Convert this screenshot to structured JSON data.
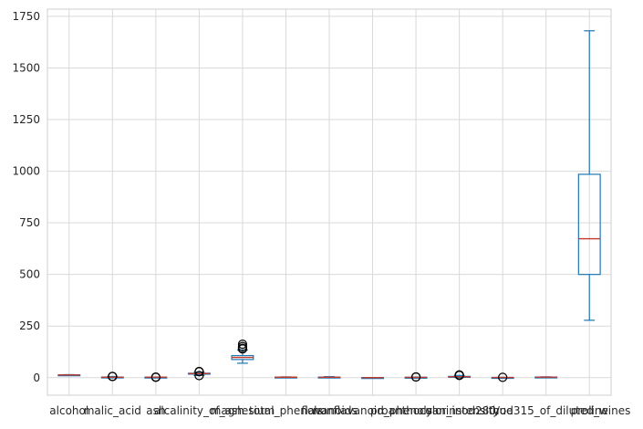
{
  "chart_data": {
    "type": "boxplot",
    "title": "",
    "xlabel": "",
    "ylabel": "",
    "ylim": [
      -85,
      1785
    ],
    "yticks": [
      0,
      250,
      500,
      750,
      1000,
      1250,
      1500,
      1750
    ],
    "grid": true,
    "legend": "none",
    "colors": {
      "box": "#1f77b4",
      "median": "#c0392b",
      "grid": "#d9d9d9",
      "flier": "#000000"
    },
    "categories": [
      "alcohol",
      "malic_acid",
      "ash",
      "alcalinity_of_ash",
      "magnesium",
      "total_phenols",
      "flavanoids",
      "nonflavanoid_phenols",
      "proanthocyanins",
      "color_intensity",
      "hue",
      "od280/od315_of_diluted_wines",
      "proline"
    ],
    "boxes": [
      {
        "name": "alcohol",
        "whislo": 11.0,
        "q1": 12.4,
        "med": 13.1,
        "q3": 13.7,
        "whishi": 14.8,
        "fliers": []
      },
      {
        "name": "malic_acid",
        "whislo": 0.7,
        "q1": 1.6,
        "med": 1.9,
        "q3": 3.1,
        "whishi": 5.7,
        "fliers": [
          5.8,
          5.9,
          6.0
        ]
      },
      {
        "name": "ash",
        "whislo": 1.7,
        "q1": 2.2,
        "med": 2.4,
        "q3": 2.6,
        "whishi": 3.1,
        "fliers": [
          1.4,
          3.2
        ]
      },
      {
        "name": "alcalinity_of_ash",
        "whislo": 10.6,
        "q1": 17.2,
        "med": 19.5,
        "q3": 21.5,
        "whishi": 27.0,
        "fliers": [
          28.5,
          30.0,
          10.0
        ]
      },
      {
        "name": "magnesium",
        "whislo": 70,
        "q1": 88,
        "med": 98,
        "q3": 107,
        "whishi": 134,
        "fliers": [
          139,
          142,
          151,
          162
        ]
      },
      {
        "name": "total_phenols",
        "whislo": 0.98,
        "q1": 1.74,
        "med": 2.36,
        "q3": 2.8,
        "whishi": 3.88,
        "fliers": []
      },
      {
        "name": "flavanoids",
        "whislo": 0.34,
        "q1": 1.2,
        "med": 2.13,
        "q3": 2.88,
        "whishi": 5.08,
        "fliers": []
      },
      {
        "name": "nonflavanoid_phenols",
        "whislo": 0.13,
        "q1": 0.27,
        "med": 0.34,
        "q3": 0.44,
        "whishi": 0.66,
        "fliers": []
      },
      {
        "name": "proanthocyanins",
        "whislo": 0.41,
        "q1": 1.25,
        "med": 1.56,
        "q3": 1.95,
        "whishi": 2.96,
        "fliers": [
          3.28,
          3.58
        ]
      },
      {
        "name": "color_intensity",
        "whislo": 1.28,
        "q1": 3.22,
        "med": 4.69,
        "q3": 6.2,
        "whishi": 10.8,
        "fliers": [
          11.75,
          13.0,
          10.8,
          13.7
        ]
      },
      {
        "name": "hue",
        "whislo": 0.48,
        "q1": 0.78,
        "med": 0.97,
        "q3": 1.12,
        "whishi": 1.45,
        "fliers": [
          1.71
        ]
      },
      {
        "name": "od280/od315_of_diluted_wines",
        "whislo": 1.27,
        "q1": 1.94,
        "med": 2.78,
        "q3": 3.17,
        "whishi": 4.0,
        "fliers": []
      },
      {
        "name": "proline",
        "whislo": 278,
        "q1": 500,
        "med": 673,
        "q3": 985,
        "whishi": 1680,
        "fliers": []
      }
    ]
  }
}
